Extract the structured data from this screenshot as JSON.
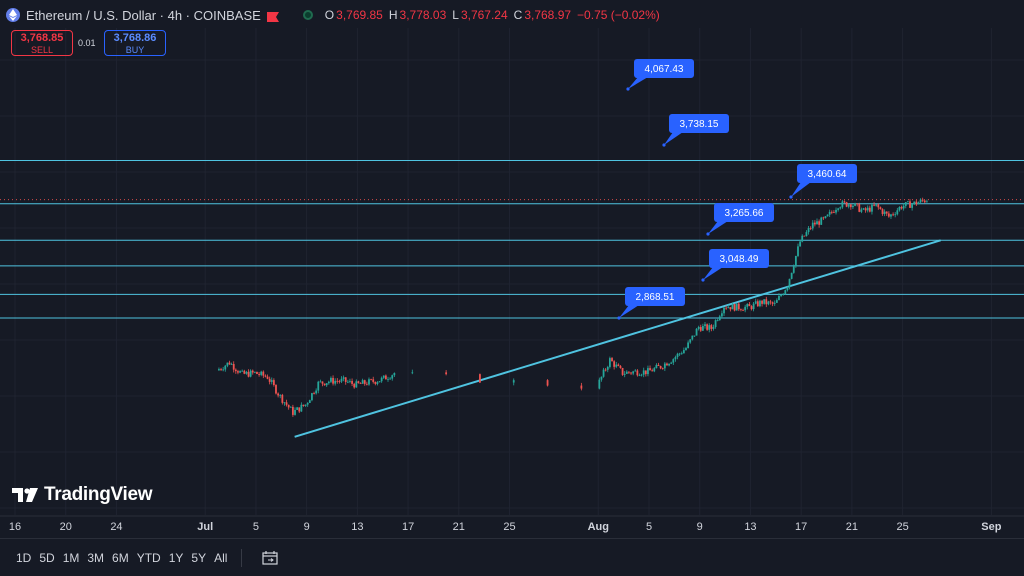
{
  "header": {
    "symbol": "Ethereum / U.S. Dollar · 4h · COINBASE",
    "o_label": "O",
    "o_value": "3,769.85",
    "h_label": "H",
    "h_value": "3,778.03",
    "l_label": "L",
    "l_value": "3,767.24",
    "c_label": "C",
    "c_value": "3,768.97",
    "change": "−0.75 (−0.02%)"
  },
  "trade": {
    "sell_price": "3,768.85",
    "sell_label": "SELL",
    "spread": "0.01",
    "buy_price": "3,768.86",
    "buy_label": "BUY"
  },
  "logo": {
    "text": "TradingView"
  },
  "timeframes": [
    "1D",
    "5D",
    "1M",
    "3M",
    "6M",
    "YTD",
    "1Y",
    "5Y",
    "All"
  ],
  "colors": {
    "background": "#161a25",
    "up": "#26a69a",
    "down": "#ef5350",
    "level_line": "#4fc3e0",
    "label_bg": "#2962ff"
  },
  "chart_data": {
    "type": "candlestick",
    "x_ticks": [
      "16",
      "20",
      "24",
      "Jul",
      "5",
      "9",
      "13",
      "17",
      "21",
      "25",
      "Aug",
      "5",
      "9",
      "13",
      "17",
      "21",
      "25",
      "Sep"
    ],
    "horizontal_levels": [
      4067.43,
      3738.15,
      3460.64,
      3265.66,
      3048.49,
      2868.51
    ],
    "level_labels": [
      "4,067.43",
      "3,738.15",
      "3,460.64",
      "3,265.66",
      "3,048.49",
      "2,868.51"
    ],
    "trendline": {
      "from": [
        "Jun 23",
        2170
      ],
      "to": [
        "Jul 28",
        3460
      ]
    },
    "price_path": [
      [
        "Jun 16",
        2470
      ],
      [
        "Jun 17",
        2530
      ],
      [
        "Jun 18",
        2440
      ],
      [
        "Jun 19",
        2450
      ],
      [
        "Jun 20",
        2420
      ],
      [
        "Jun 21",
        2270
      ],
      [
        "Jun 22",
        2150
      ],
      [
        "Jun 23",
        2210
      ],
      [
        "Jun 24",
        2370
      ],
      [
        "Jun 25",
        2390
      ],
      [
        "Jun 26",
        2390
      ],
      [
        "Jun 27",
        2360
      ],
      [
        "Jun 28",
        2380
      ],
      [
        "Jun 29",
        2400
      ],
      [
        "Jun 30",
        2450
      ],
      [
        "Jul 1",
        2350
      ],
      [
        "Jul 2",
        2550
      ],
      [
        "Jul 3",
        2450
      ],
      [
        "Jul 4",
        2460
      ],
      [
        "Jul 5",
        2460
      ],
      [
        "Jul 6",
        2500
      ],
      [
        "Jul 7",
        2560
      ],
      [
        "Jul 8",
        2640
      ],
      [
        "Jul 9",
        2800
      ],
      [
        "Jul 10",
        2790
      ],
      [
        "Jul 11",
        2960
      ],
      [
        "Jul 12",
        2950
      ],
      [
        "Jul 13",
        2950
      ],
      [
        "Jul 14",
        2990
      ],
      [
        "Jul 15",
        2970
      ],
      [
        "Jul 16",
        3120
      ],
      [
        "Jul 17",
        3450
      ],
      [
        "Jul 18",
        3580
      ],
      [
        "Jul 19",
        3620
      ],
      [
        "Jul 20",
        3730
      ],
      [
        "Jul 21",
        3740
      ],
      [
        "Jul 22",
        3680
      ],
      [
        "Jul 23",
        3720
      ],
      [
        "Jul 24",
        3640
      ],
      [
        "Jul 25",
        3720
      ],
      [
        "Jul 26",
        3740
      ],
      [
        "Jul 27",
        3769
      ]
    ]
  }
}
